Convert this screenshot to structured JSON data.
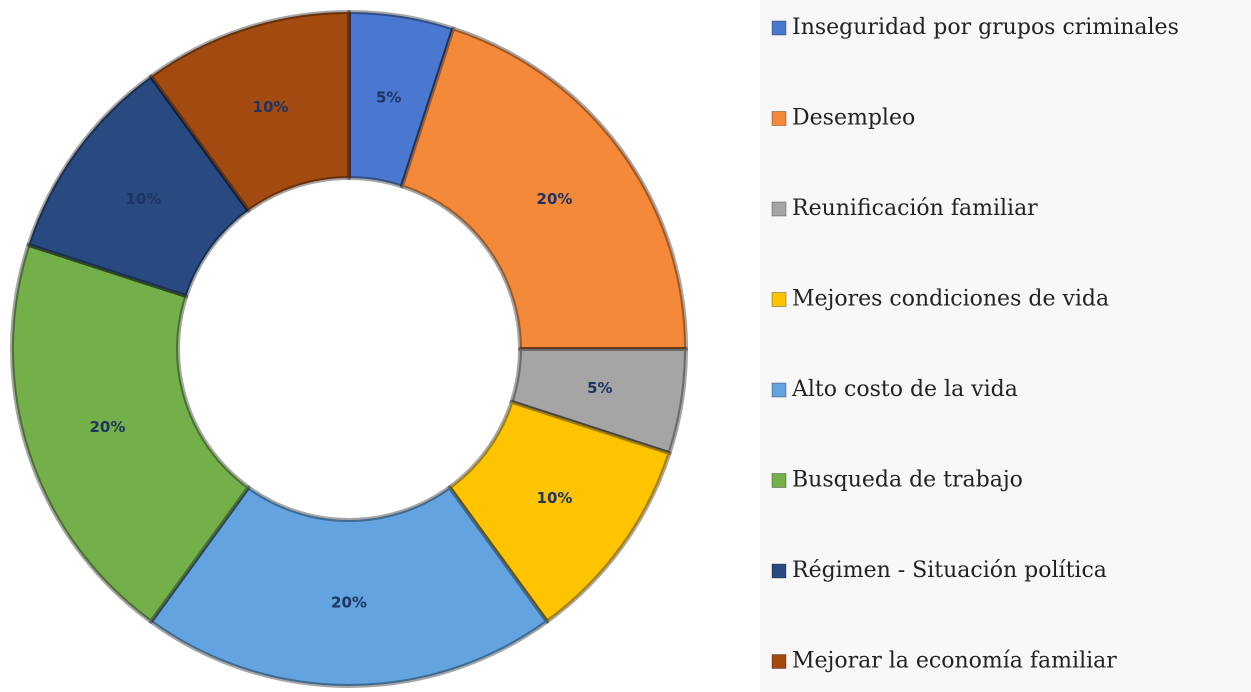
{
  "chart_data": {
    "type": "donut",
    "categories": [
      "Inseguridad por grupos criminales",
      "Desempleo",
      "Reunificación familiar",
      "Mejores condiciones de vida",
      "Alto costo de la vida",
      "Busqueda de trabajo",
      "Régimen - Situación política",
      "Mejorar la economía familiar"
    ],
    "values": [
      5,
      20,
      5,
      10,
      20,
      20,
      10,
      10
    ],
    "value_labels": [
      "5%",
      "20%",
      "5%",
      "10%",
      "20%",
      "20%",
      "10%",
      "10%"
    ],
    "colors": [
      "#4a78d0",
      "#f5893a",
      "#a5a5a5",
      "#ffc400",
      "#62a3e0",
      "#74b04a",
      "#284a80",
      "#a24a10"
    ],
    "legend": "right"
  }
}
